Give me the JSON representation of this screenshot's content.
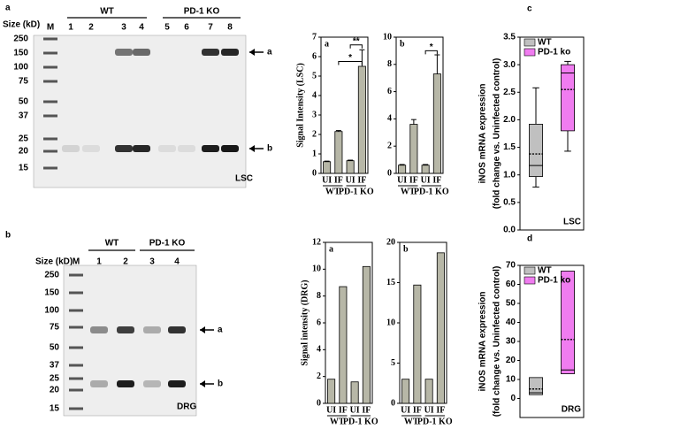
{
  "blots": [
    {
      "panel": "a",
      "size_label": "Size (kD)",
      "marker_lane": "M",
      "lanes": [
        "1",
        "2",
        "3",
        "4",
        "5",
        "6",
        "7",
        "8"
      ],
      "groups": [
        "WT",
        "PD-1 KO"
      ],
      "markers": [
        "250",
        "150",
        "100",
        "75",
        "50",
        "37",
        "25",
        "20",
        "15"
      ],
      "bands": [
        "a",
        "b"
      ],
      "tissue": "LSC"
    },
    {
      "panel": "b",
      "size_label": "Size (kD)",
      "marker_lane": "M",
      "lanes": [
        "1",
        "2",
        "3",
        "4"
      ],
      "groups": [
        "WT",
        "PD-1 KO"
      ],
      "markers": [
        "250",
        "150",
        "100",
        "75",
        "50",
        "37",
        "25",
        "20",
        "15"
      ],
      "bands": [
        "a",
        "b"
      ],
      "tissue": "DRG"
    }
  ],
  "chart_data": [
    {
      "type": "bar",
      "title": "a",
      "ylabel": "Signal Intensity (LSC)",
      "categories": [
        "UI",
        "IF",
        "UI",
        "IF"
      ],
      "groups": [
        "WT",
        "PD-1 KO"
      ],
      "values": [
        0.6,
        2.15,
        0.65,
        5.5
      ],
      "errors": [
        0.03,
        0.05,
        0.03,
        0.85
      ],
      "color": "#b7b7a7",
      "ylim": [
        0,
        7
      ],
      "yticks": [
        0,
        1,
        2,
        3,
        4,
        5,
        6,
        7
      ],
      "annotations": [
        "*",
        "**"
      ]
    },
    {
      "type": "bar",
      "title": "b",
      "categories": [
        "UI",
        "IF",
        "UI",
        "IF"
      ],
      "groups": [
        "WT",
        "PD-1 KO"
      ],
      "values": [
        0.6,
        3.6,
        0.6,
        7.3
      ],
      "errors": [
        0.05,
        0.35,
        0.05,
        1.4
      ],
      "color": "#b7b7a7",
      "ylim": [
        0,
        10
      ],
      "yticks": [
        0,
        2,
        4,
        6,
        8,
        10
      ],
      "annotations": [
        "*"
      ]
    },
    {
      "type": "bar",
      "title": "a",
      "ylabel": "Signal intensity (DRG)",
      "categories": [
        "UI",
        "IF",
        "UI",
        "IF"
      ],
      "groups": [
        "WT",
        "PD-1 KO"
      ],
      "values": [
        1.8,
        8.7,
        1.6,
        10.2
      ],
      "color": "#b7b7a7",
      "ylim": [
        0,
        12
      ],
      "yticks": [
        0,
        2,
        4,
        6,
        8,
        10,
        12
      ]
    },
    {
      "type": "bar",
      "title": "b",
      "categories": [
        "UI",
        "IF",
        "UI",
        "IF"
      ],
      "groups": [
        "WT",
        "PD-1 KO"
      ],
      "values": [
        3.0,
        14.7,
        3.0,
        18.7
      ],
      "color": "#b7b7a7",
      "ylim": [
        0,
        20
      ],
      "yticks": [
        0,
        5,
        10,
        15,
        20
      ]
    },
    {
      "type": "box",
      "panel": "c",
      "ylabel": [
        "iNOS mRNA expression",
        "(fold change vs. Uninfected control)"
      ],
      "series": [
        {
          "name": "WT",
          "color": "#c0c0c0",
          "min": 0.78,
          "q1": 0.97,
          "median": 1.17,
          "q3": 1.92,
          "max": 2.58,
          "mean": 1.38
        },
        {
          "name": "PD-1 ko",
          "color": "#f07cf0",
          "min": 1.43,
          "q1": 1.8,
          "median": 2.85,
          "q3": 3.0,
          "max": 3.06,
          "mean": 2.55
        }
      ],
      "ylim": [
        0,
        3.5
      ],
      "yticks": [
        {
          "value": 0,
          "label": "0.0"
        },
        0.5,
        {
          "value": 1,
          "label": "1.0"
        },
        1.5,
        {
          "value": 2,
          "label": "2.0"
        },
        2.5,
        {
          "value": 3,
          "label": "3.0"
        },
        3.5
      ],
      "annotation": "LSC"
    },
    {
      "type": "box",
      "panel": "d",
      "ylabel": [
        "iNOS mRNA expression",
        "(fold change vs. Uninfected control)"
      ],
      "series": [
        {
          "name": "WT",
          "color": "#c0c0c0",
          "q1": 2,
          "median": 3,
          "q3": 11,
          "mean": 5
        },
        {
          "name": "PD-1 ko",
          "color": "#f07cf0",
          "q1": 13,
          "median": 15,
          "q3": 67,
          "mean": 31
        }
      ],
      "ylim": [
        -10,
        70
      ],
      "yticks": [
        0,
        10,
        20,
        30,
        40,
        50,
        60,
        70
      ],
      "annotation": "DRG"
    }
  ]
}
